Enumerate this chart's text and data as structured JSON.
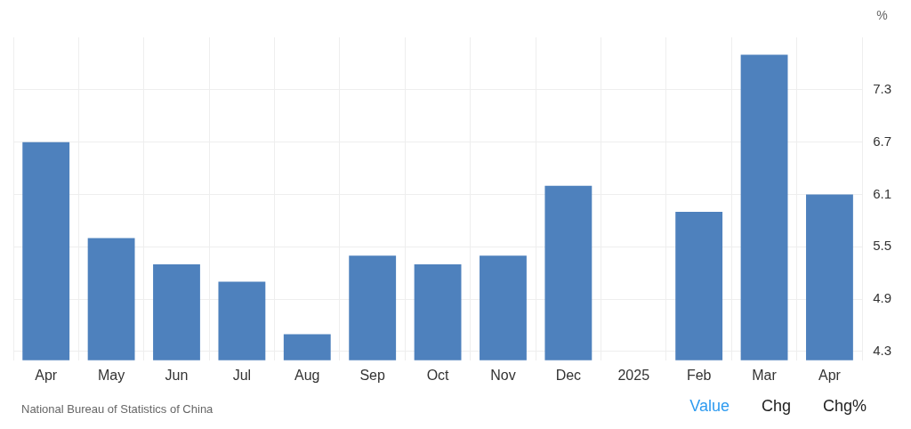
{
  "chart_data": {
    "type": "bar",
    "ylabel": "%",
    "categories": [
      "Apr",
      "May",
      "Jun",
      "Jul",
      "Aug",
      "Sep",
      "Oct",
      "Nov",
      "Dec",
      "2025",
      "Feb",
      "Mar",
      "Apr"
    ],
    "series": [
      {
        "color": "#4e81bd",
        "values": [
          6.7,
          5.6,
          5.3,
          5.1,
          4.5,
          5.4,
          5.3,
          5.4,
          6.2,
          null,
          5.9,
          7.7,
          6.1
        ]
      }
    ],
    "ylim": [
      4.2,
      7.9
    ],
    "yticks": [
      4.3,
      4.9,
      5.5,
      6.1,
      6.7,
      7.3
    ],
    "grid": true,
    "legend": false,
    "annotations": [
      "National Bureau of Statistics of China",
      "Value",
      "Chg",
      "Chg%"
    ]
  }
}
